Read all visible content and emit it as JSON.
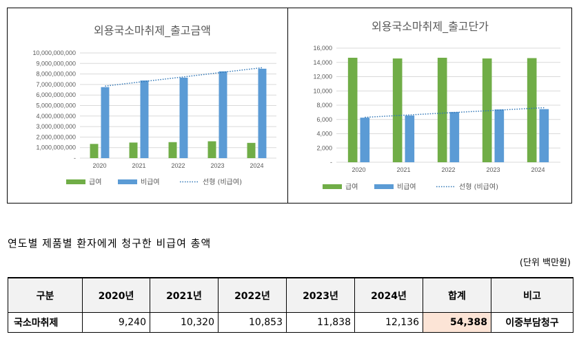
{
  "chart_data": [
    {
      "type": "bar",
      "title": "외용국소마취제_출고금액",
      "categories": [
        "2020",
        "2021",
        "2022",
        "2023",
        "2024"
      ],
      "series": [
        {
          "name": "급여",
          "values": [
            1350000000,
            1480000000,
            1520000000,
            1600000000,
            1450000000
          ],
          "color": "#70ad47"
        },
        {
          "name": "비급여",
          "values": [
            6750000000,
            7380000000,
            7650000000,
            8250000000,
            8500000000
          ],
          "color": "#5b9bd5"
        }
      ],
      "trendline": {
        "name": "선형 (비급여)",
        "start": 6850000000,
        "end": 8600000000,
        "color": "#2e75b6"
      },
      "ylim": [
        0,
        10000000000
      ],
      "yticks": [
        "-",
        "1,000,000,000",
        "2,000,000,000",
        "3,000,000,000",
        "4,000,000,000",
        "5,000,000,000",
        "6,000,000,000",
        "7,000,000,000",
        "8,000,000,000",
        "9,000,000,000",
        "10,000,000,000"
      ],
      "legend": [
        "급여",
        "비급여",
        "선형 (비급여)"
      ]
    },
    {
      "type": "bar",
      "title": "외용국소마취제_출고단가",
      "categories": [
        "2020",
        "2021",
        "2022",
        "2023",
        "2024"
      ],
      "series": [
        {
          "name": "급여",
          "values": [
            14650,
            14550,
            14650,
            14550,
            14600
          ],
          "color": "#70ad47"
        },
        {
          "name": "비급여",
          "values": [
            6250,
            6550,
            7050,
            7400,
            7450
          ],
          "color": "#5b9bd5"
        }
      ],
      "trendline": {
        "name": "선형 (비급여)",
        "start": 6300,
        "end": 7650,
        "color": "#2e75b6"
      },
      "ylim": [
        0,
        16000
      ],
      "yticks": [
        "-",
        "2,000",
        "4,000",
        "6,000",
        "8,000",
        "10,000",
        "12,000",
        "14,000",
        "16,000"
      ],
      "legend": [
        "급여",
        "비급여",
        "선형 (비급여)"
      ]
    }
  ],
  "caption": "연도별 제품별 환자에게 청구한 비급여 총액",
  "unit_note": "(단위 백만원)",
  "table": {
    "headers": [
      "구분",
      "2020년",
      "2021년",
      "2022년",
      "2023년",
      "2024년",
      "합계",
      "비고"
    ],
    "row": {
      "label": "국소마취제",
      "values": [
        "9,240",
        "10,320",
        "10,853",
        "11,838",
        "12,136"
      ],
      "total": "54,388",
      "note": "이중부담청구"
    }
  }
}
